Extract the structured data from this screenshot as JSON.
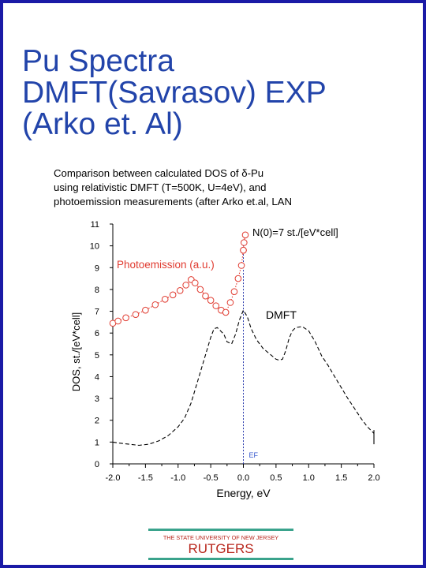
{
  "slide": {
    "title_lines": [
      "Pu Spectra",
      "DMFT(Savrasov) EXP",
      "(Arko et. Al)"
    ]
  },
  "figure": {
    "caption_lines": [
      "Comparison between calculated DOS of δ-Pu",
      "using relativistic DMFT (T=500K, U=4eV), and",
      "photoemission measurements (after Arko et.al, LAN"
    ]
  },
  "footer": {
    "line1": "THE STATE UNIVERSITY OF NEW JERSEY",
    "line2": "RUTGERS"
  },
  "colors": {
    "title": "#2244aa",
    "frame": "#1a1aa6",
    "photoemission": "#e03b30",
    "dmft": "#000000",
    "ef_label": "#3355cc",
    "logo_text": "#b8261c",
    "logo_bar": "#3aa38c"
  },
  "chart_data": {
    "type": "line",
    "xlabel": "Energy, eV",
    "ylabel": "DOS, st./[eV*cell]",
    "xlim": [
      -2.0,
      2.0
    ],
    "ylim": [
      0,
      11
    ],
    "xticks": [
      "-2.0",
      "-1.5",
      "-1.0",
      "-0.5",
      "0.0",
      "0.5",
      "1.0",
      "1.5",
      "2.0"
    ],
    "xminor": [
      -1.75,
      -1.25,
      -0.75,
      -0.25,
      0.25,
      0.75,
      1.25,
      1.75
    ],
    "yticks": [
      "0",
      "1",
      "2",
      "3",
      "4",
      "5",
      "6",
      "7",
      "8",
      "9",
      "10",
      "11"
    ],
    "grid": false,
    "annotations": {
      "photoemission": "Photoemission (a.u.)",
      "dmft": "DMFT",
      "n0": "N(0)=7 st./[eV*cell]",
      "ef": "EF"
    },
    "series": [
      {
        "name": "Photoemission (a.u.)",
        "style": "dotted-circles",
        "x": [
          -2.0,
          -1.92,
          -1.8,
          -1.65,
          -1.5,
          -1.35,
          -1.2,
          -1.08,
          -0.97,
          -0.88,
          -0.8,
          -0.74,
          -0.66,
          -0.58,
          -0.5,
          -0.42,
          -0.34,
          -0.27,
          -0.2,
          -0.14,
          -0.08,
          -0.03,
          0.0
        ],
        "y": [
          6.45,
          6.55,
          6.7,
          6.85,
          7.05,
          7.3,
          7.55,
          7.75,
          7.95,
          8.2,
          8.45,
          8.3,
          8.0,
          7.7,
          7.5,
          7.25,
          7.05,
          6.95,
          7.4,
          7.9,
          8.5,
          9.1,
          9.8
        ]
      },
      {
        "name": "Photoemission (a.u.) upturn",
        "style": "dotted-circles-solo",
        "x": [
          0.0,
          0.01,
          0.03
        ],
        "y": [
          9.8,
          10.15,
          10.5
        ]
      },
      {
        "name": "DMFT",
        "style": "dashed",
        "x": [
          -2.0,
          -1.9,
          -1.75,
          -1.6,
          -1.45,
          -1.3,
          -1.15,
          -1.0,
          -0.9,
          -0.8,
          -0.7,
          -0.62,
          -0.55,
          -0.5,
          -0.45,
          -0.4,
          -0.35,
          -0.3,
          -0.25,
          -0.18,
          -0.12,
          -0.06,
          0.0,
          0.06,
          0.12,
          0.2,
          0.3,
          0.4,
          0.5,
          0.55,
          0.6,
          0.65,
          0.7,
          0.75,
          0.8,
          0.9,
          1.0,
          1.1,
          1.2,
          1.3,
          1.4,
          1.5,
          1.6,
          1.7,
          1.8,
          1.9,
          2.0
        ],
        "y": [
          1.0,
          0.95,
          0.9,
          0.85,
          0.9,
          1.05,
          1.3,
          1.7,
          2.1,
          2.8,
          3.8,
          4.6,
          5.3,
          5.8,
          6.2,
          6.25,
          6.1,
          5.95,
          5.6,
          5.5,
          5.95,
          6.6,
          7.05,
          6.75,
          6.2,
          5.7,
          5.3,
          5.05,
          4.8,
          4.75,
          4.8,
          5.2,
          5.75,
          6.1,
          6.25,
          6.3,
          6.1,
          5.6,
          4.95,
          4.5,
          4.0,
          3.5,
          3.0,
          2.55,
          2.1,
          1.7,
          1.4
        ]
      }
    ]
  }
}
